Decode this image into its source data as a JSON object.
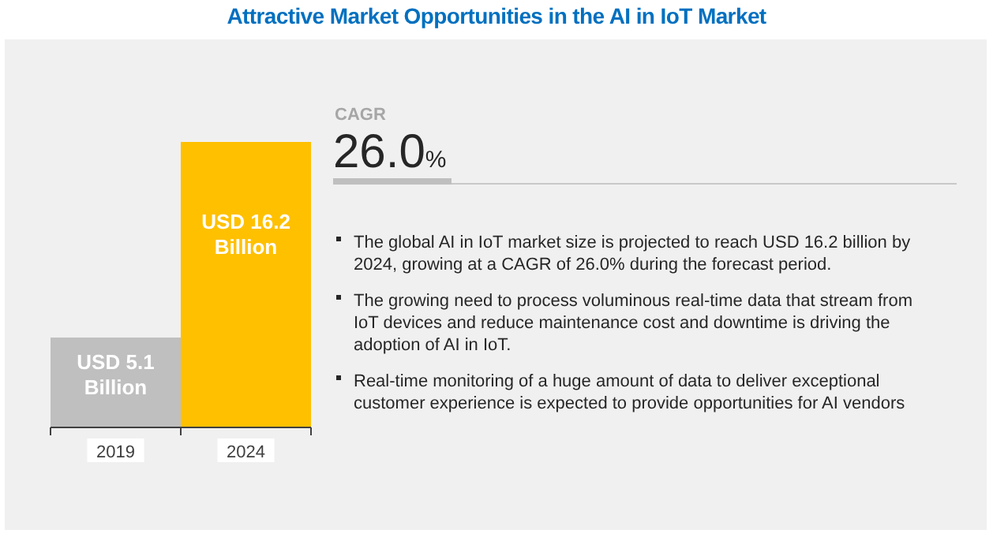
{
  "chart_data": {
    "type": "bar",
    "title": "Attractive Market Opportunities in the AI in IoT Market",
    "categories": [
      "2019",
      "2024"
    ],
    "values": [
      5.1,
      16.2
    ],
    "colors": [
      "#bfbfbf",
      "#ffc000"
    ],
    "value_labels": [
      "USD 5.1 Billion",
      "USD 16.2 Billion"
    ],
    "annotations": [
      "CAGR",
      "26.0%",
      "The global AI in IoT market size is projected to reach USD 16.2 billion by 2024, growing at a CAGR of 26.0% during the forecast period.",
      "The growing need to process voluminous real-time data that stream from IoT devices and reduce maintenance cost and downtime is driving the adoption of AI in IoT.",
      "Real-time monitoring of a huge amount of data to deliver exceptional customer experience is expected to provide opportunities for AI vendors"
    ]
  }
}
